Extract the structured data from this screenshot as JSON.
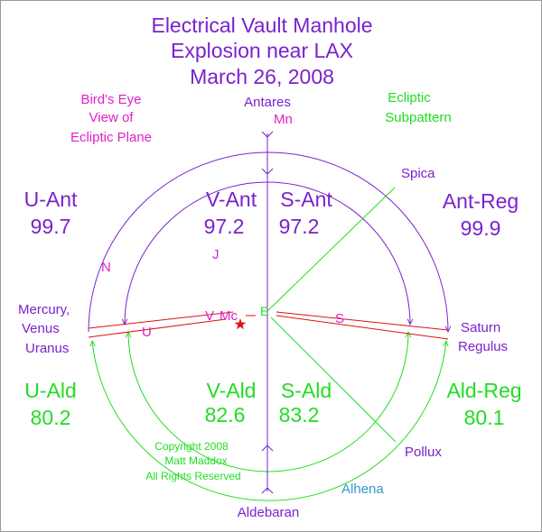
{
  "title": {
    "line1": "Electrical Vault Manhole",
    "line2": "Explosion near LAX",
    "line3": "March 26, 2008"
  },
  "notes": {
    "birds_eye_1": "Bird's Eye",
    "birds_eye_2": "View of",
    "birds_eye_3": "Ecliptic Plane",
    "ecliptic_1": "Ecliptic",
    "ecliptic_2": "Subpattern"
  },
  "stars": {
    "antares": "Antares",
    "spica": "Spica",
    "pollux": "Pollux",
    "alhena": "Alhena",
    "aldebaran": "Aldebaran",
    "saturn": "Saturn",
    "regulus": "Regulus",
    "mercury": "Mercury,",
    "venus": "Venus",
    "uranus": "Uranus"
  },
  "bodies": {
    "moon_top": "Mn",
    "node": "N",
    "jupiter": "J",
    "earth": "E",
    "venus": "V",
    "mercury_mc": "Mc",
    "uranus": "U",
    "saturn": "S"
  },
  "quadrants": {
    "u_ant": {
      "label": "U-Ant",
      "value": "99.7"
    },
    "v_ant": {
      "label": "V-Ant",
      "value": "97.2"
    },
    "s_ant": {
      "label": "S-Ant",
      "value": "97.2"
    },
    "ant_reg": {
      "label": "Ant-Reg",
      "value": "99.9"
    },
    "u_ald": {
      "label": "U-Ald",
      "value": "80.2"
    },
    "v_ald": {
      "label": "V-Ald",
      "value": "82.6"
    },
    "s_ald": {
      "label": "S-Ald",
      "value": "83.2"
    },
    "ald_reg": {
      "label": "Ald-Reg",
      "value": "80.1"
    }
  },
  "copyright": {
    "line1": "Copyright 2008",
    "line2": "Matt Maddox",
    "line3": "All Rights Reserved"
  },
  "colors": {
    "purple": "#7a22cc",
    "magenta": "#e020c8",
    "green": "#22dd22",
    "red": "#dd1111",
    "blue": "#3399cc"
  }
}
